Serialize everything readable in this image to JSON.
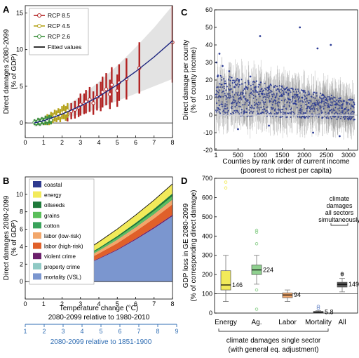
{
  "chart_data": [
    {
      "panel": "A",
      "type": "scatter",
      "xlabel": "",
      "ylabel": "Direct damages 2080-2099 (% of GDP)",
      "xlim": [
        0,
        8
      ],
      "ylim": [
        -2,
        16
      ],
      "xticks": [
        0,
        1,
        2,
        3,
        4,
        5,
        6,
        7,
        8
      ],
      "yticks": [
        0,
        5,
        10,
        15
      ],
      "legend_position": "top-left",
      "legend": [
        "RCP 8.5",
        "RCP 4.5",
        "RCP 2.6",
        "Fitted values"
      ],
      "series": [
        {
          "name": "RCP 8.5",
          "color": "#b22222",
          "x": [
            2.3,
            2.5,
            2.7,
            2.9,
            3.0,
            3.2,
            3.3,
            3.5,
            3.7,
            3.9,
            4.1,
            4.2,
            4.4,
            4.6,
            4.7,
            5.0,
            5.1,
            5.5,
            6.2,
            8.0
          ],
          "y": [
            1.2,
            1.6,
            1.8,
            2.1,
            2.5,
            2.6,
            2.9,
            3.2,
            2.7,
            3.5,
            3.6,
            4.2,
            4.6,
            3.9,
            5.2,
            4.4,
            5.5,
            6.0,
            7.5,
            11.0
          ],
          "err": [
            1.0,
            1.1,
            1.2,
            1.3,
            1.5,
            1.4,
            1.6,
            1.7,
            1.6,
            1.8,
            2.0,
            2.1,
            2.2,
            2.0,
            2.4,
            2.2,
            2.5,
            2.8,
            3.5,
            5.5
          ]
        },
        {
          "name": "RCP 4.5",
          "color": "#b5a31a",
          "x": [
            1.1,
            1.2,
            1.3,
            1.4,
            1.5,
            1.6,
            1.7,
            1.8,
            1.9,
            2.0,
            2.1,
            2.2,
            2.3
          ],
          "y": [
            0.3,
            0.6,
            0.4,
            0.8,
            0.7,
            1.0,
            0.9,
            1.2,
            1.0,
            1.4,
            1.5,
            1.3,
            1.7
          ],
          "err": [
            0.6,
            0.6,
            0.7,
            0.7,
            0.7,
            0.8,
            0.8,
            0.8,
            0.9,
            0.9,
            1.0,
            1.0,
            1.0
          ]
        },
        {
          "name": "RCP 2.6",
          "color": "#3a8f3a",
          "x": [
            0.5,
            0.6,
            0.7,
            0.8,
            0.9,
            1.0,
            1.1,
            1.2,
            1.3,
            1.4
          ],
          "y": [
            0.1,
            0.0,
            0.2,
            0.1,
            0.3,
            0.2,
            0.4,
            0.3,
            0.5,
            0.4
          ],
          "err": [
            0.4,
            0.4,
            0.5,
            0.5,
            0.5,
            0.5,
            0.6,
            0.6,
            0.6,
            0.6
          ]
        },
        {
          "name": "Fitted values",
          "color": "#000000",
          "x": [
            0.5,
            1,
            2,
            3,
            4,
            5,
            6,
            7,
            8
          ],
          "y": [
            0.0,
            0.3,
            1.2,
            2.3,
            3.6,
            5.2,
            7.0,
            9.0,
            11.2
          ],
          "band_low": [
            -0.5,
            -0.3,
            0.5,
            1.2,
            2.0,
            3.0,
            4.0,
            5.0,
            6.0
          ],
          "band_high": [
            0.5,
            0.8,
            2.0,
            3.6,
            5.6,
            7.8,
            10.3,
            13.0,
            16.0
          ]
        }
      ]
    },
    {
      "panel": "B",
      "type": "area",
      "xlabel": "Temperature change (°C)",
      "x_caption_1": "2080-2099 relative to 1980-2010",
      "x_caption_2": "2080-2099 relative to 1851-1900",
      "ylabel": "Direct damages 2080-2099 (% of GDP)",
      "xlim": [
        0,
        8
      ],
      "ylim": [
        -2,
        12
      ],
      "xticks": [
        0,
        1,
        2,
        3,
        4,
        5,
        6,
        7,
        8
      ],
      "xticks_secondary": [
        1,
        2,
        3,
        4,
        5,
        6,
        7,
        8,
        9
      ],
      "yticks": [
        0,
        2,
        4,
        6,
        8,
        10
      ],
      "legend_position": "top-left",
      "x": [
        0.3,
        1.0,
        1.5,
        2,
        3,
        4,
        5,
        6,
        7,
        8
      ],
      "series": [
        {
          "name": "mortality (VSL)",
          "color": "#7b96cf",
          "values": [
            0,
            0.2,
            0.4,
            0.9,
            1.7,
            2.6,
            3.6,
            4.8,
            6.1,
            7.5
          ]
        },
        {
          "name": "property crime",
          "color": "#8fc9c4",
          "values": [
            0,
            0.0,
            0.0,
            0.0,
            0.0,
            0.0,
            0.0,
            0.0,
            0.0,
            0.0
          ]
        },
        {
          "name": "violent crime",
          "color": "#6b1f6b",
          "values": [
            0,
            0.02,
            0.03,
            0.04,
            0.06,
            0.08,
            0.1,
            0.12,
            0.14,
            0.16
          ]
        },
        {
          "name": "labor (high-risk)",
          "color": "#e0602a",
          "values": [
            0,
            0.1,
            0.15,
            0.25,
            0.4,
            0.55,
            0.7,
            0.85,
            1.0,
            1.2
          ]
        },
        {
          "name": "labor (low-risk)",
          "color": "#f2a76b",
          "values": [
            0,
            0.05,
            0.1,
            0.15,
            0.25,
            0.3,
            0.4,
            0.45,
            0.5,
            0.55
          ]
        },
        {
          "name": "cotton",
          "color": "#3aa35b",
          "values": [
            0,
            0.01,
            0.02,
            0.03,
            0.04,
            0.05,
            0.06,
            0.07,
            0.08,
            0.09
          ]
        },
        {
          "name": "grains",
          "color": "#5bbf5b",
          "values": [
            0,
            0.02,
            0.04,
            0.06,
            0.1,
            0.14,
            0.18,
            0.22,
            0.26,
            0.3
          ]
        },
        {
          "name": "oilseeds",
          "color": "#1f7a3a",
          "values": [
            0,
            0.02,
            0.04,
            0.06,
            0.1,
            0.14,
            0.18,
            0.22,
            0.26,
            0.3
          ]
        },
        {
          "name": "energy",
          "color": "#f2ea5a",
          "values": [
            0,
            0.1,
            0.2,
            0.3,
            0.5,
            0.7,
            0.8,
            0.9,
            1.0,
            1.1
          ]
        },
        {
          "name": "coastal",
          "color": "#2e3a8f",
          "values": [
            0,
            0.0,
            0.0,
            0.0,
            0.0,
            0.0,
            0.0,
            0.0,
            0.0,
            0.0
          ]
        }
      ],
      "legend": [
        "coastal",
        "energy",
        "oilseeds",
        "grains",
        "cotton",
        "labor (low-risk)",
        "labor (high-risk)",
        "violent crime",
        "property crime",
        "mortality (VSL)"
      ]
    },
    {
      "panel": "C",
      "type": "scatter",
      "xlabel": "Counties by rank order of current income",
      "xlabel2": "(poorest to richest per capita)",
      "ylabel": "Direct damage per county (% of county income)",
      "xlim": [
        1,
        3143
      ],
      "ylim": [
        -20,
        60
      ],
      "xticks": [
        1,
        500,
        1000,
        1500,
        2000,
        2500,
        3000
      ],
      "yticks": [
        -20,
        -10,
        0,
        10,
        20,
        30,
        40,
        50,
        60
      ],
      "point_color": "#2c3c96",
      "trend": {
        "start": 12,
        "end": 3
      },
      "sample_points": [
        [
          10,
          30
        ],
        [
          40,
          22
        ],
        [
          80,
          35
        ],
        [
          150,
          28
        ],
        [
          200,
          18
        ],
        [
          300,
          25
        ],
        [
          420,
          16
        ],
        [
          520,
          20
        ],
        [
          650,
          15
        ],
        [
          780,
          22
        ],
        [
          900,
          14
        ],
        [
          1050,
          12
        ],
        [
          1200,
          16
        ],
        [
          1350,
          10
        ],
        [
          1500,
          11
        ],
        [
          1650,
          9
        ],
        [
          1800,
          8
        ],
        [
          1950,
          10
        ],
        [
          2100,
          7
        ],
        [
          2250,
          6
        ],
        [
          2400,
          8
        ],
        [
          2550,
          5
        ],
        [
          2700,
          6
        ],
        [
          2850,
          4
        ],
        [
          3000,
          3
        ],
        [
          3100,
          5
        ],
        [
          2600,
          40
        ],
        [
          1000,
          45
        ],
        [
          1900,
          50
        ],
        [
          2300,
          38
        ],
        [
          500,
          -8
        ],
        [
          1200,
          -6
        ],
        [
          2200,
          -10
        ],
        [
          2800,
          -12
        ]
      ]
    },
    {
      "panel": "D",
      "type": "box",
      "ylabel": "GDP loss in GE 2080-2099 (% of corresponding direct damage)",
      "ylim": [
        0,
        700
      ],
      "yticks": [
        0,
        100,
        200,
        300,
        400,
        500,
        600,
        700
      ],
      "reference_line": 100,
      "categories": [
        "Energy",
        "Ag.",
        "Labor",
        "Mortality",
        "All"
      ],
      "median_labels": [
        "146",
        "224",
        "94",
        "5.8",
        "149"
      ],
      "boxes": [
        {
          "name": "Energy",
          "color": "#f2ea5a",
          "min": 60,
          "q1": 120,
          "median": 146,
          "q3": 220,
          "max": 300,
          "outliers": [
            650,
            680
          ]
        },
        {
          "name": "Ag.",
          "color": "#8fd08f",
          "min": 150,
          "q1": 200,
          "median": 224,
          "q3": 250,
          "max": 300,
          "outliers": [
            360,
            420,
            430,
            120,
            20
          ]
        },
        {
          "name": "Labor",
          "color": "#f2a76b",
          "min": 60,
          "q1": 80,
          "median": 94,
          "q3": 105,
          "max": 120,
          "outliers": []
        },
        {
          "name": "Mortality",
          "color": "#7b96cf",
          "min": 2,
          "q1": 4,
          "median": 5.8,
          "q3": 8,
          "max": 12,
          "outliers": [
            25,
            35
          ]
        },
        {
          "name": "All",
          "color": "#555555",
          "min": 110,
          "q1": 135,
          "median": 149,
          "q3": 160,
          "max": 180,
          "outliers": [
            200,
            205
          ]
        }
      ],
      "annotation_all": [
        "climate",
        "damages",
        "all sectors",
        "simultaneously"
      ],
      "annotation_single": [
        "climate damages single sector",
        "(with general eq. adjustment)"
      ]
    }
  ],
  "panel_letters": [
    "A",
    "B",
    "C",
    "D"
  ]
}
